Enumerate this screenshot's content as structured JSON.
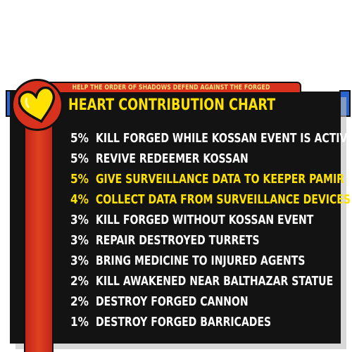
{
  "header": {
    "subtitle": "HELP THE ORDER OF SHADOWS DEFEND AGAINST THE FORGED",
    "title": "HEART CONTRIBUTION CHART"
  },
  "badge": {
    "icon": "heart-icon"
  },
  "colors": {
    "panel": "#131313",
    "accent_red": "#d8321f",
    "accent_yellow": "#ffe200",
    "tab_blue": "#2a63c9"
  },
  "rows": [
    {
      "pct": "5%",
      "text": "KILL FORGED WHILE KOSSAN EVENT IS ACTIVE",
      "highlight": false
    },
    {
      "pct": "5%",
      "text": "REVIVE REDEEMER KOSSAN",
      "highlight": false
    },
    {
      "pct": "5%",
      "text": "GIVE SURVEILLANCE DATA TO KEEPER PAMIR",
      "highlight": true
    },
    {
      "pct": "4%",
      "text": "COLLECT DATA FROM SURVEILLANCE DEVICES",
      "highlight": true
    },
    {
      "pct": "3%",
      "text": "KILL FORGED WITHOUT KOSSAN EVENT",
      "highlight": false
    },
    {
      "pct": "3%",
      "text": "REPAIR DESTROYED TURRETS",
      "highlight": false
    },
    {
      "pct": "3%",
      "text": "BRING MEDICINE TO INJURED AGENTS",
      "highlight": false
    },
    {
      "pct": "2%",
      "text": "KILL AWAKENED NEAR BALTHAZAR STATUE",
      "highlight": false
    },
    {
      "pct": "2%",
      "text": "DESTROY FORGED CANNON",
      "highlight": false
    },
    {
      "pct": "1%",
      "text": "DESTROY FORGED BARRICADES",
      "highlight": false
    }
  ]
}
